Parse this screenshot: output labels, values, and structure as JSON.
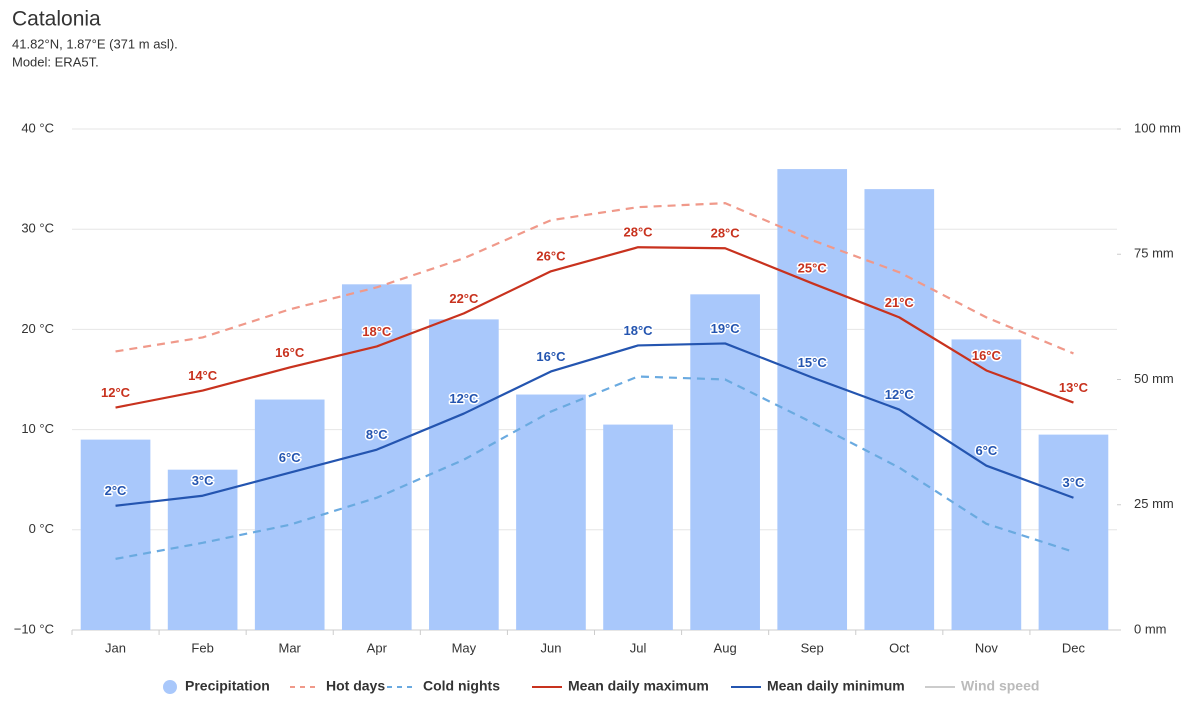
{
  "chart_data": {
    "type": "bar-line",
    "title": "Catalonia",
    "subtitle": [
      "41.82°N, 1.87°E (371 m asl).",
      "Model: ERA5T."
    ],
    "categories": [
      "Jan",
      "Feb",
      "Mar",
      "Apr",
      "May",
      "Jun",
      "Jul",
      "Aug",
      "Sep",
      "Oct",
      "Nov",
      "Dec"
    ],
    "ylim": [
      -10,
      40
    ],
    "yticks": [
      {
        "value": -10,
        "label": "−10 °C"
      },
      {
        "value": 0,
        "label": "0 °C"
      },
      {
        "value": 10,
        "label": "10 °C"
      },
      {
        "value": 20,
        "label": "20 °C"
      },
      {
        "value": 30,
        "label": "30 °C"
      },
      {
        "value": 40,
        "label": "40 °C"
      }
    ],
    "y2lim": [
      0,
      100
    ],
    "y2ticks": [
      {
        "value": 0,
        "label": "0 mm"
      },
      {
        "value": 25,
        "label": "25 mm"
      },
      {
        "value": 50,
        "label": "50 mm"
      },
      {
        "value": 75,
        "label": "75 mm"
      },
      {
        "value": 100,
        "label": "100 mm"
      }
    ],
    "grid": true,
    "legend": "bottom",
    "series": [
      {
        "name": "Precipitation",
        "type": "bar",
        "axis": "y2",
        "color": "#a9c8fb",
        "values": [
          38,
          32,
          46,
          69,
          62,
          47,
          41,
          67,
          92,
          88,
          58,
          39
        ]
      },
      {
        "name": "Hot days",
        "type": "line",
        "dashed": true,
        "color": "#f0998a",
        "values": [
          17.8,
          19.2,
          22,
          24.2,
          27.1,
          30.9,
          32.2,
          32.6,
          28.9,
          25.7,
          21.2,
          17.6
        ]
      },
      {
        "name": "Cold nights",
        "type": "line",
        "dashed": true,
        "color": "#6aaae0",
        "values": [
          -2.9,
          -1.3,
          0.5,
          3.2,
          7,
          11.8,
          15.3,
          15,
          10.7,
          6.2,
          0.6,
          -2.2
        ]
      },
      {
        "name": "Mean daily maximum",
        "type": "line",
        "color": "#c8321e",
        "values": [
          12.2,
          13.9,
          16.2,
          18.3,
          21.6,
          25.8,
          28.2,
          28.1,
          24.6,
          21.2,
          15.9,
          12.7
        ],
        "value_labels": [
          "12°C",
          "14°C",
          "16°C",
          "18°C",
          "22°C",
          "26°C",
          "28°C",
          "28°C",
          "25°C",
          "21°C",
          "16°C",
          "13°C"
        ]
      },
      {
        "name": "Mean daily minimum",
        "type": "line",
        "color": "#2455b0",
        "values": [
          2.4,
          3.4,
          5.7,
          8.0,
          11.6,
          15.8,
          18.4,
          18.6,
          15.2,
          12.0,
          6.4,
          3.2
        ],
        "value_labels": [
          "2°C",
          "3°C",
          "6°C",
          "8°C",
          "12°C",
          "16°C",
          "18°C",
          "19°C",
          "15°C",
          "12°C",
          "6°C",
          "3°C"
        ]
      },
      {
        "name": "Wind speed",
        "type": "line",
        "visible": false,
        "color": "#999999"
      }
    ]
  }
}
